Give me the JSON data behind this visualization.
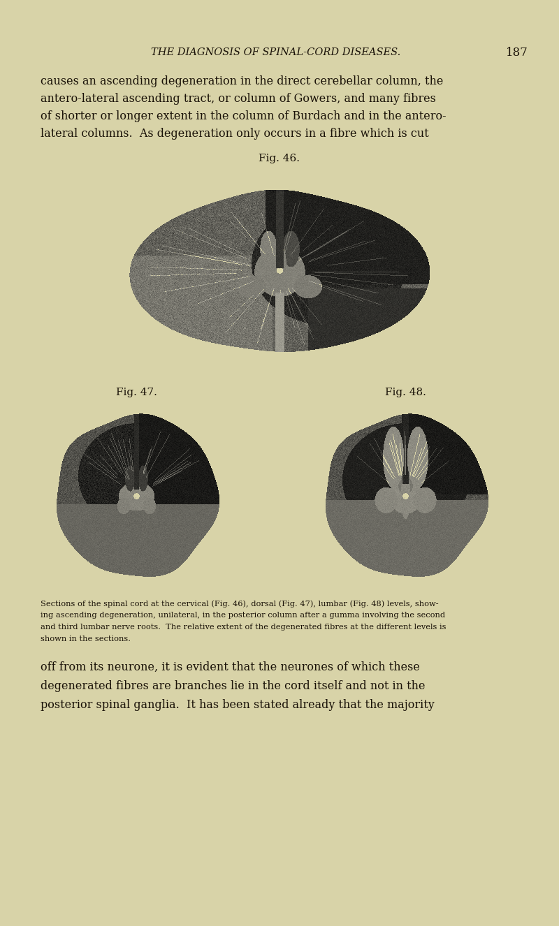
{
  "bg_color": "#d8d3a8",
  "text_color": "#1a1208",
  "header_text": "THE DIAGNOSIS OF SPINAL-CORD DISEASES.",
  "page_number": "187",
  "body_text_lines": [
    "causes an ascending degeneration in the direct cerebellar column, the",
    "antero-lateral ascending tract, or column of Gowers, and many fibres",
    "of shorter or longer extent in the column of Burdach and in the antero-",
    "lateral columns.  As degeneration only occurs in a fibre which is cut"
  ],
  "fig46_label": "Fig. 46.",
  "fig47_label": "Fig. 47.",
  "fig48_label": "Fig. 48.",
  "caption_lines": [
    "Sections of the spinal cord at the cervical (Fig. 46), dorsal (Fig. 47), lumbar (Fig. 48) levels, show-",
    "ing ascending degeneration, unilateral, in the posterior column after a gumma involving the second",
    "and third lumbar nerve roots.  The relative extent of the degenerated fibres at the different levels is",
    "shown in the sections."
  ],
  "bottom_text_lines": [
    "off from its neurone, it is evident that the neurones of which these",
    "degenerated fibres are branches lie in the cord itself and not in the",
    "posterior spinal ganglia.  It has been stated already that the majority"
  ]
}
